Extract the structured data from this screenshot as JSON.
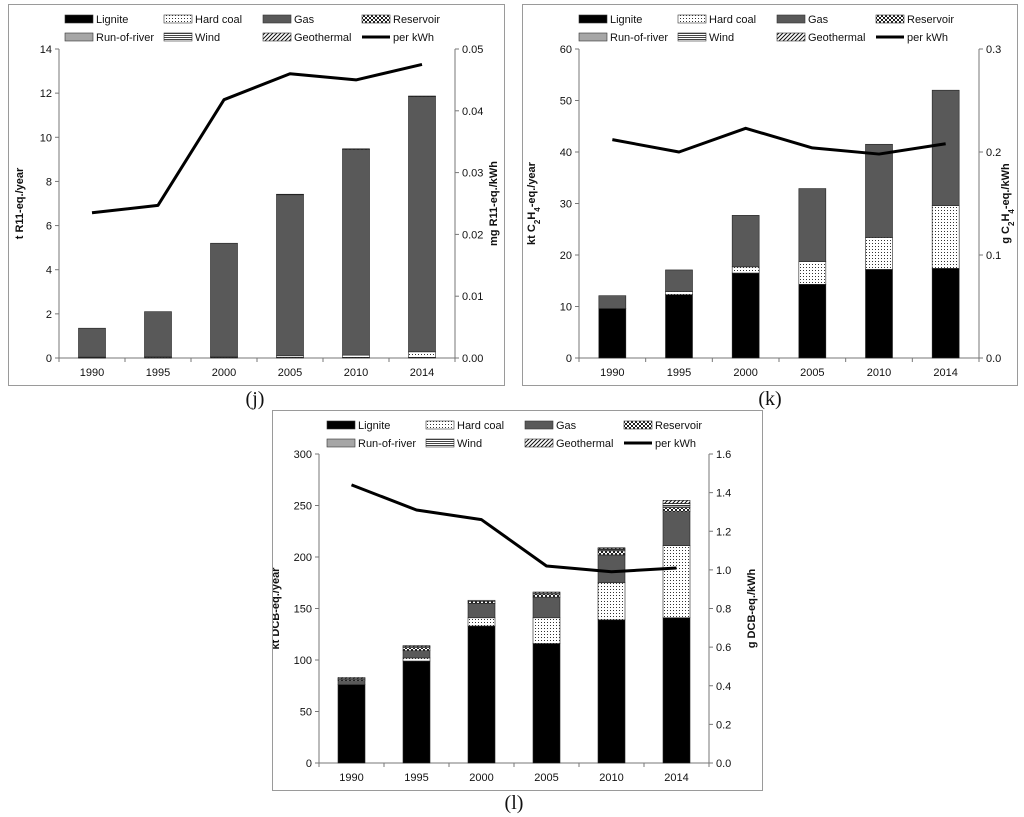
{
  "captions": [
    "(j)",
    "(k)",
    "(l)"
  ],
  "chart_data": [
    {
      "type": "bar",
      "stacked": true,
      "title": "",
      "caption": "(j)",
      "categories": [
        "1990",
        "1995",
        "2000",
        "2005",
        "2010",
        "2014"
      ],
      "ylabel": "t R11-eq./year",
      "ylabel_html": "t R11-eq./year",
      "y2label_html": "mg R11-eq./kWh",
      "ylim": [
        0,
        14
      ],
      "yticks": [
        "0",
        "2",
        "4",
        "6",
        "8",
        "10",
        "12",
        "14"
      ],
      "y2lim": [
        0,
        0.05
      ],
      "y2ticks": [
        "0.00",
        "0.01",
        "0.02",
        "0.03",
        "0.04",
        "0.05"
      ],
      "legend_position": "top",
      "series": [
        {
          "name": "Lignite",
          "pattern": "solid-black",
          "values": [
            0.02,
            0.02,
            0.03,
            0.03,
            0.03,
            0.03
          ]
        },
        {
          "name": "Hard coal",
          "pattern": "dots",
          "values": [
            0.02,
            0.03,
            0.04,
            0.07,
            0.1,
            0.25
          ]
        },
        {
          "name": "Gas",
          "pattern": "solid-darkgray",
          "values": [
            1.31,
            2.05,
            5.13,
            7.3,
            9.32,
            11.57
          ]
        },
        {
          "name": "Reservoir",
          "pattern": "checker",
          "values": [
            0,
            0,
            0,
            0.02,
            0.03,
            0.02
          ]
        },
        {
          "name": "Run-of-river",
          "pattern": "solid-lightgray",
          "values": [
            0,
            0,
            0,
            0,
            0,
            0
          ]
        },
        {
          "name": "Wind",
          "pattern": "hlines",
          "values": [
            0,
            0,
            0,
            0,
            0,
            0
          ]
        },
        {
          "name": "Geothermal",
          "pattern": "diagonal",
          "values": [
            0,
            0,
            0,
            0,
            0,
            0
          ]
        }
      ],
      "line": {
        "name": "per kWh",
        "axis": "secondary",
        "values": [
          0.0235,
          0.0247,
          0.0418,
          0.046,
          0.045,
          0.0475
        ]
      }
    },
    {
      "type": "bar",
      "stacked": true,
      "title": "",
      "caption": "(k)",
      "categories": [
        "1990",
        "1995",
        "2000",
        "2005",
        "2010",
        "2014"
      ],
      "ylabel": "kt C2H4-eq./year",
      "ylabel_html": "kt C<tspan baseline-shift='sub' font-size='8'>2</tspan>H<tspan baseline-shift='sub' font-size='8'>4</tspan>-eq./year",
      "y2label_html": "g C<tspan baseline-shift='sub' font-size='8'>2</tspan>H<tspan baseline-shift='sub' font-size='8'>4</tspan>-eq./kWh",
      "ylim": [
        0,
        60
      ],
      "yticks": [
        "0",
        "10",
        "20",
        "30",
        "40",
        "50",
        "60"
      ],
      "y2lim": [
        0,
        0.3
      ],
      "y2ticks": [
        "0.0",
        "0.1",
        "0.2",
        "0.3"
      ],
      "legend_position": "top",
      "series": [
        {
          "name": "Lignite",
          "pattern": "solid-black",
          "values": [
            9.6,
            12.3,
            16.5,
            14.3,
            17.2,
            17.4
          ]
        },
        {
          "name": "Hard coal",
          "pattern": "dots",
          "values": [
            0,
            0.6,
            1.2,
            4.4,
            6.2,
            12.2
          ]
        },
        {
          "name": "Gas",
          "pattern": "solid-darkgray",
          "values": [
            2.5,
            4.2,
            10,
            14.2,
            18.1,
            22.4
          ]
        },
        {
          "name": "Reservoir",
          "pattern": "checker",
          "values": [
            0,
            0,
            0,
            0,
            0,
            0
          ]
        },
        {
          "name": "Run-of-river",
          "pattern": "solid-lightgray",
          "values": [
            0,
            0,
            0,
            0,
            0,
            0
          ]
        },
        {
          "name": "Wind",
          "pattern": "hlines",
          "values": [
            0,
            0,
            0,
            0,
            0,
            0
          ]
        },
        {
          "name": "Geothermal",
          "pattern": "diagonal",
          "values": [
            0,
            0,
            0,
            0,
            0,
            0
          ]
        }
      ],
      "line": {
        "name": "per kWh",
        "axis": "secondary",
        "values": [
          0.212,
          0.2,
          0.223,
          0.204,
          0.198,
          0.208
        ]
      }
    },
    {
      "type": "bar",
      "stacked": true,
      "title": "",
      "caption": "(l)",
      "categories": [
        "1990",
        "1995",
        "2000",
        "2005",
        "2010",
        "2014"
      ],
      "ylabel": "kt DCB-eq./year",
      "ylabel_html": "kt DCB-eq./year",
      "y2label_html": "g DCB-eq./kWh",
      "ylim": [
        0,
        300
      ],
      "yticks": [
        "0",
        "50",
        "100",
        "150",
        "200",
        "250",
        "300"
      ],
      "y2lim": [
        0,
        1.6
      ],
      "y2ticks": [
        "0.0",
        "0.2",
        "0.4",
        "0.6",
        "0.8",
        "1.0",
        "1.2",
        "1.4",
        "1.6"
      ],
      "legend_position": "top",
      "series": [
        {
          "name": "Lignite",
          "pattern": "solid-black",
          "values": [
            76,
            99,
            133,
            116,
            139,
            141
          ]
        },
        {
          "name": "Hard coal",
          "pattern": "dots",
          "values": [
            0,
            3,
            8,
            25,
            36,
            70
          ]
        },
        {
          "name": "Gas",
          "pattern": "solid-darkgray",
          "values": [
            4,
            7,
            14,
            20,
            27,
            33
          ]
        },
        {
          "name": "Reservoir",
          "pattern": "checker",
          "values": [
            1,
            3,
            2,
            3,
            4,
            4
          ]
        },
        {
          "name": "Run-of-river",
          "pattern": "solid-lightgray",
          "values": [
            1,
            1,
            1,
            1,
            1,
            2
          ]
        },
        {
          "name": "Wind",
          "pattern": "hlines",
          "values": [
            0,
            0,
            0,
            0,
            1,
            2
          ]
        },
        {
          "name": "Geothermal",
          "pattern": "diagonal",
          "values": [
            1,
            1,
            0,
            1,
            1,
            3
          ]
        }
      ],
      "line": {
        "name": "per kWh",
        "axis": "secondary",
        "values": [
          1.44,
          1.31,
          1.26,
          1.02,
          0.99,
          1.01
        ]
      }
    }
  ],
  "colors": {
    "lignite": "#000000",
    "gas": "#595959",
    "run_of_river": "#a6a6a6",
    "line": "#000000",
    "panel_border": "#9a9a9a"
  }
}
